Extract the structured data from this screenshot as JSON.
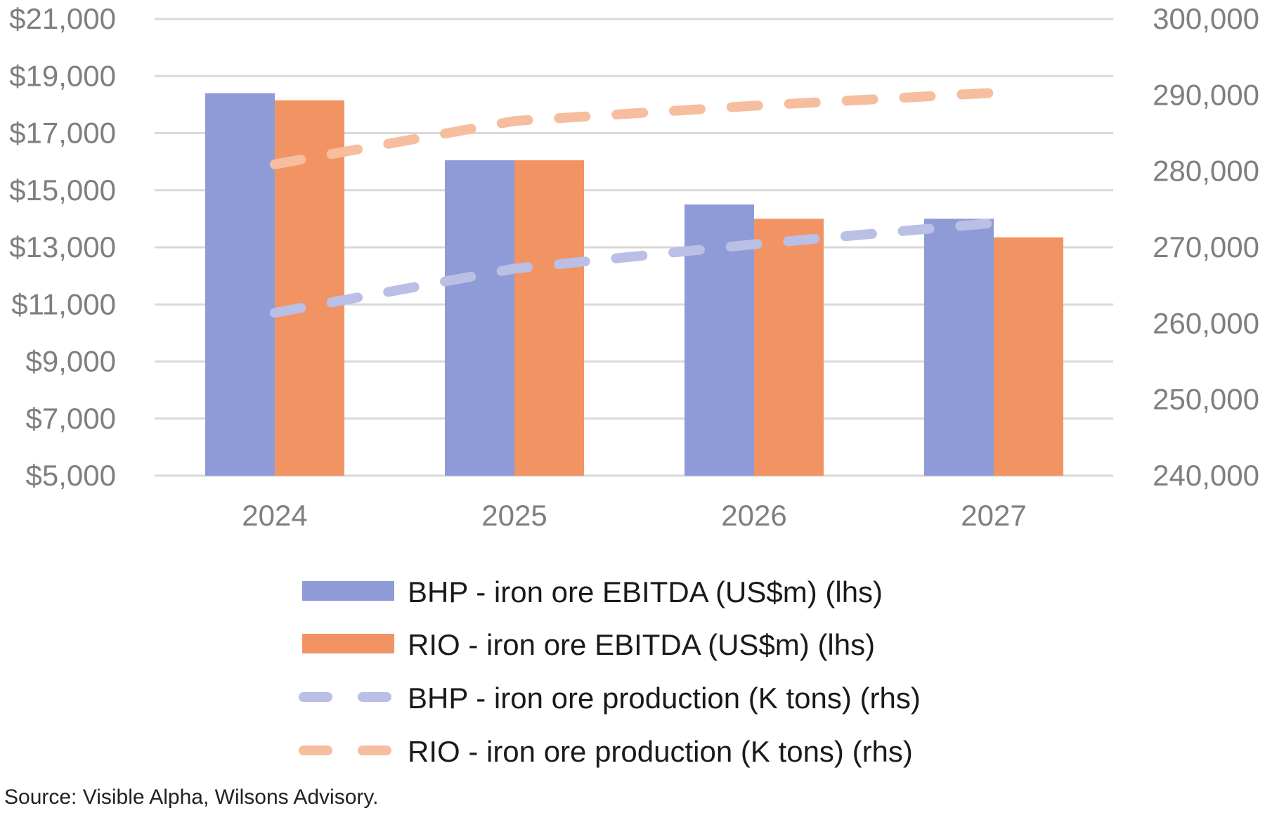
{
  "chart_data": {
    "type": "bar",
    "categories": [
      "2024",
      "2025",
      "2026",
      "2027"
    ],
    "y_left": {
      "range": [
        5000,
        21000
      ],
      "ticks": [
        5000,
        7000,
        9000,
        11000,
        13000,
        15000,
        17000,
        19000,
        21000
      ],
      "tick_labels": [
        "$5,000",
        "$7,000",
        "$9,000",
        "$11,000",
        "$13,000",
        "$15,000",
        "$17,000",
        "$19,000",
        "$21,000"
      ]
    },
    "y_right": {
      "range": [
        240000,
        300000
      ],
      "ticks": [
        240000,
        250000,
        260000,
        270000,
        280000,
        290000,
        300000
      ],
      "tick_labels": [
        "240,000",
        "250,000",
        "260,000",
        "270,000",
        "280,000",
        "290,000",
        "300,000"
      ]
    },
    "grid": true,
    "legend_position": "bottom",
    "series": [
      {
        "name": "BHP - iron ore EBITDA (US$m) (lhs)",
        "type": "bar",
        "axis": "left",
        "color": "#8E9BD6",
        "values": [
          18400,
          16050,
          14500,
          14000
        ]
      },
      {
        "name": "RIO - iron ore EBITDA (US$m) (lhs)",
        "type": "bar",
        "axis": "left",
        "color": "#F29363",
        "values": [
          18150,
          16050,
          14000,
          13350
        ]
      },
      {
        "name": "BHP - iron ore production (K tons) (rhs)",
        "type": "line-dashed",
        "axis": "right",
        "color": "#B9BFE5",
        "values": [
          261400,
          267200,
          270400,
          273200
        ]
      },
      {
        "name": "RIO - iron ore production (K tons) (rhs)",
        "type": "line-dashed",
        "axis": "right",
        "color": "#F7BD9F",
        "values": [
          280900,
          286600,
          288600,
          290300
        ]
      }
    ]
  },
  "source": "Source: Visible Alpha, Wilsons Advisory."
}
